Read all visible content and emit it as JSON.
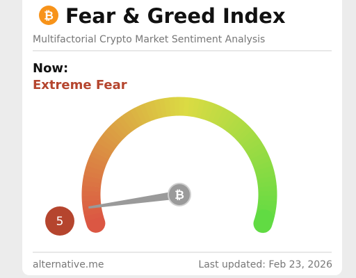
{
  "header": {
    "title": "Fear & Greed Index",
    "subtitle": "Multifactorial Crypto Market Sentiment Analysis"
  },
  "now": {
    "label": "Now:",
    "classification": "Extreme Fear"
  },
  "gauge": {
    "value": 5
  },
  "footer": {
    "source": "alternative.me",
    "updated": "Last updated: Feb 23, 2026"
  }
}
